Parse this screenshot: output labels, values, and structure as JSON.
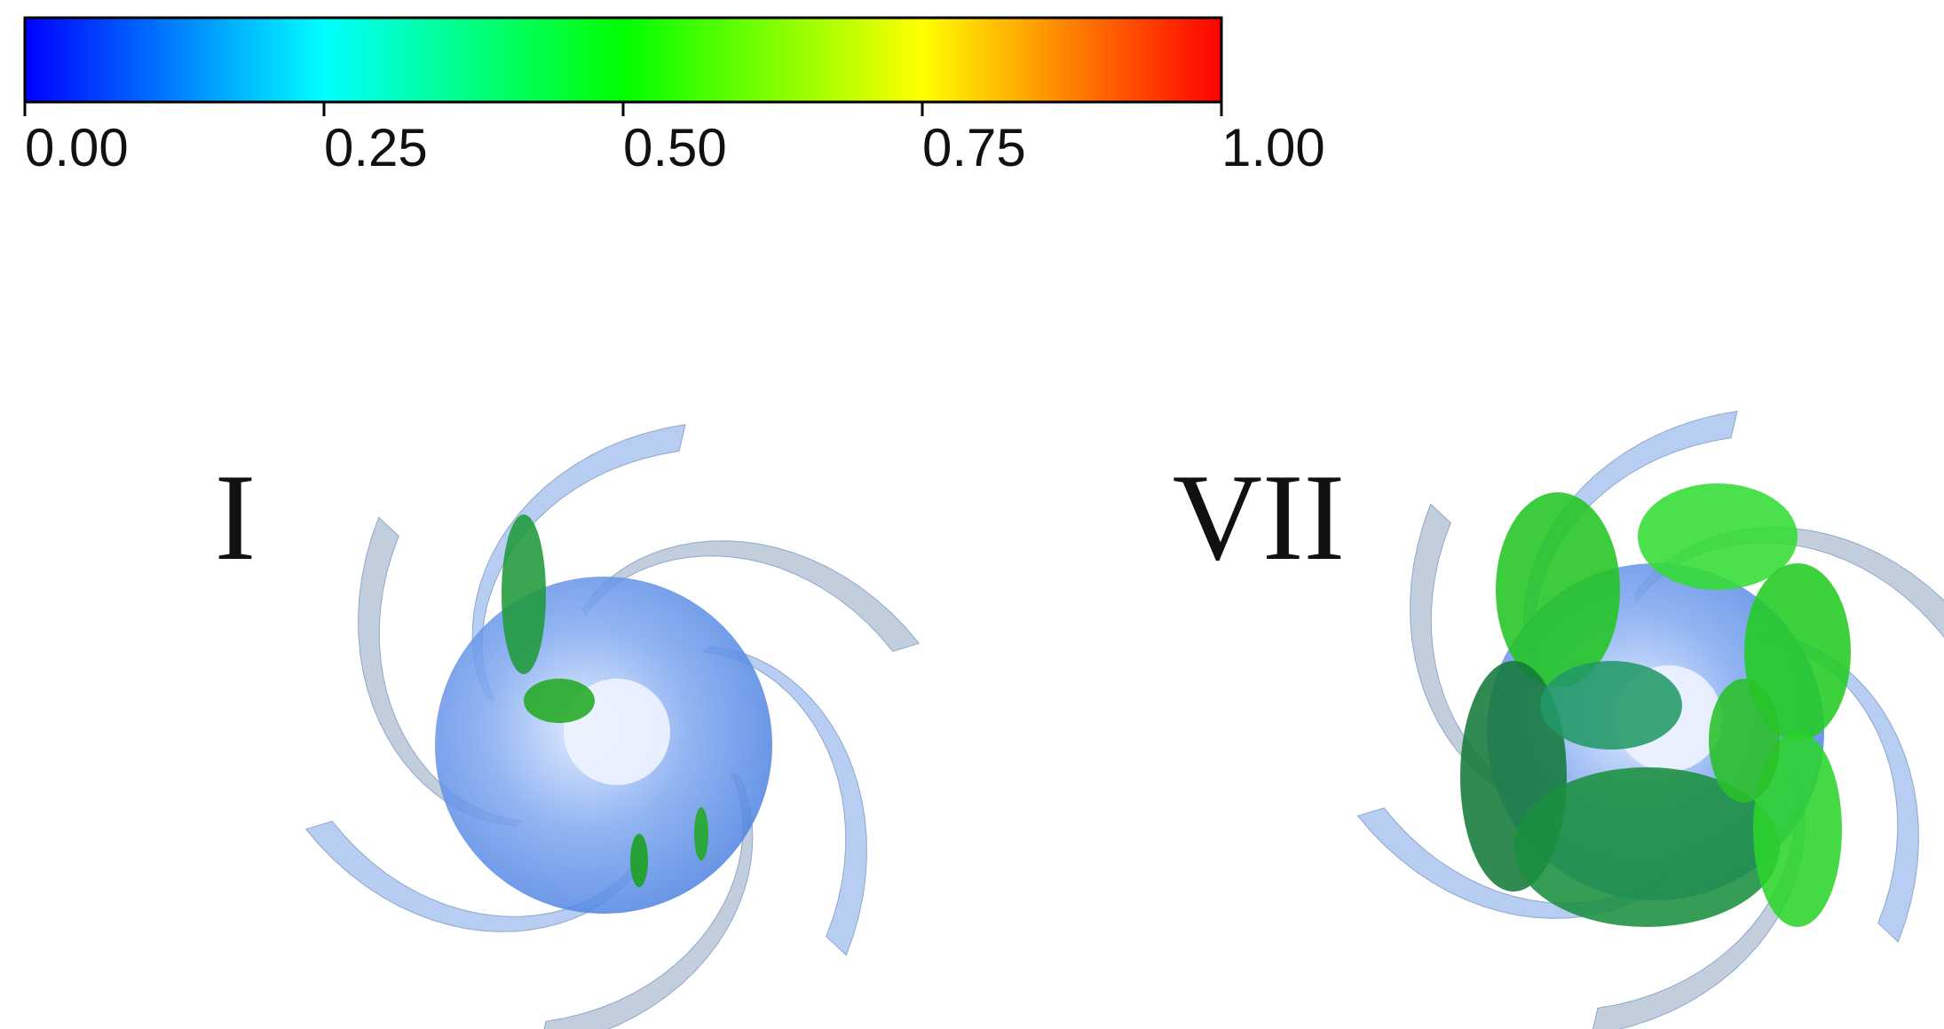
{
  "colorbar": {
    "range": [
      0,
      1
    ],
    "colors": [
      "#0000ff",
      "#00ffff",
      "#00ff00",
      "#ffff00",
      "#ff0000"
    ],
    "ticks": [
      {
        "value": 0,
        "label": "0.00"
      },
      {
        "value": 0.25,
        "label": "0.25"
      },
      {
        "value": 0.5,
        "label": "0.50"
      },
      {
        "value": 0.75,
        "label": "0.75"
      },
      {
        "value": 1,
        "label": "1.00"
      }
    ]
  },
  "panels": [
    {
      "label": "I"
    },
    {
      "label": "VII"
    }
  ]
}
